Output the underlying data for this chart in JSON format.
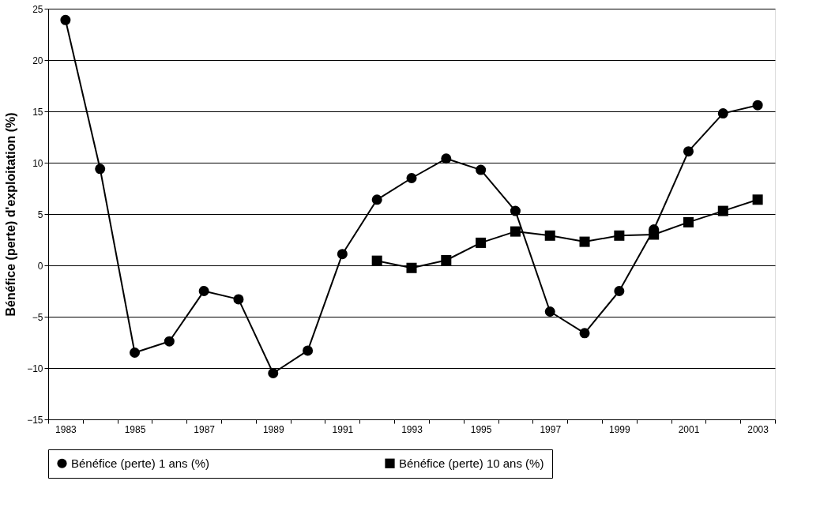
{
  "chart_data": {
    "type": "line",
    "ylabel": "Bénéfice (perte) d'exploitation (%)",
    "categories": [
      "1983",
      null,
      "1985",
      null,
      "1987",
      null,
      "1989",
      null,
      "1991",
      null,
      "1993",
      null,
      "1995",
      null,
      "1997",
      null,
      "1999",
      null,
      "2001",
      null,
      "2003"
    ],
    "series": [
      {
        "name": "Bénéfice (perte) 1 ans (%)",
        "color": "#000000",
        "marker": "circle",
        "values": [
          23.9,
          9.4,
          -8.5,
          -7.4,
          -2.5,
          -3.3,
          -10.5,
          -8.3,
          1.1,
          6.4,
          8.5,
          10.4,
          9.3,
          5.3,
          -4.5,
          -6.6,
          -2.5,
          3.5,
          11.1,
          14.8,
          15.6
        ]
      },
      {
        "name": "Bénéfice (perte) 10 ans (%)",
        "color": "#000000",
        "marker": "square",
        "values": [
          null,
          null,
          null,
          null,
          null,
          null,
          null,
          null,
          null,
          0.45,
          -0.25,
          0.5,
          2.2,
          3.3,
          2.9,
          2.3,
          2.9,
          3.0,
          4.2,
          5.3,
          6.4
        ]
      }
    ],
    "ylim": [
      -15,
      25
    ],
    "yticks": [
      -15,
      -10,
      -5,
      0,
      5,
      10,
      15,
      20,
      25
    ],
    "grid": "y",
    "legend": "bottom",
    "line_style": "solid"
  }
}
